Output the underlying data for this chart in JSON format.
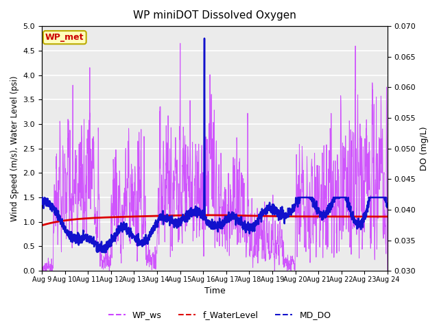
{
  "title": "WP miniDOT Dissolved Oxygen",
  "xlabel": "Time",
  "ylabel_left": "Wind Speed (m/s), Water Level (psi)",
  "ylabel_right": "DO (mg/L)",
  "ylim_left": [
    0.0,
    5.0
  ],
  "ylim_right": [
    0.03,
    0.07
  ],
  "yticks_left": [
    0.0,
    0.5,
    1.0,
    1.5,
    2.0,
    2.5,
    3.0,
    3.5,
    4.0,
    4.5,
    5.0
  ],
  "yticks_right": [
    0.03,
    0.035,
    0.04,
    0.045,
    0.05,
    0.055,
    0.06,
    0.065,
    0.07
  ],
  "xtick_labels": [
    "Aug 9",
    "Aug 10",
    "Aug 11",
    "Aug 12",
    "Aug 13",
    "Aug 14",
    "Aug 15",
    "Aug 16",
    "Aug 17",
    "Aug 18",
    "Aug 19",
    "Aug 20",
    "Aug 21",
    "Aug 22",
    "Aug 23",
    "Aug 24"
  ],
  "wp_ws_color": "#CC44FF",
  "f_waterlevel_color": "#DD0000",
  "md_do_color": "#1111CC",
  "annotation_text": "WP_met",
  "annotation_facecolor": "#FFFFBB",
  "annotation_edgecolor": "#BBAA00",
  "annotation_textcolor": "#CC0000",
  "bg_color": "#EBEBEB",
  "legend_labels": [
    "WP_ws",
    "f_WaterLevel",
    "MD_DO"
  ],
  "legend_colors": [
    "#CC44FF",
    "#DD0000",
    "#1111CC"
  ]
}
